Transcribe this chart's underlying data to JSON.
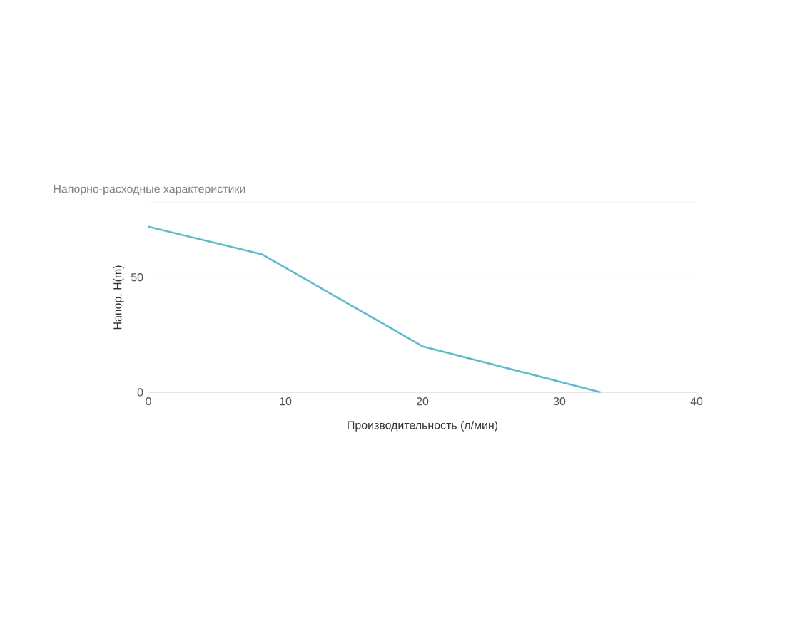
{
  "chart_data": {
    "type": "line",
    "title": "Напорно-расходные характеристики",
    "xlabel": "Производительность (л/мин)",
    "ylabel": "Напор, H(m)",
    "x": [
      0,
      8.3,
      20,
      33
    ],
    "series": [
      {
        "color": "#5bbccc",
        "values": [
          72,
          60,
          20,
          0
        ]
      }
    ],
    "xlim": [
      0,
      40
    ],
    "xticks": [
      0,
      10,
      20,
      30,
      40
    ],
    "ylim": [
      0,
      82.5
    ],
    "yticks": [
      0,
      50,
      {
        "value": 82.5,
        "label": null
      }
    ],
    "grid": "y",
    "marker": "none",
    "line_style": "solid"
  }
}
